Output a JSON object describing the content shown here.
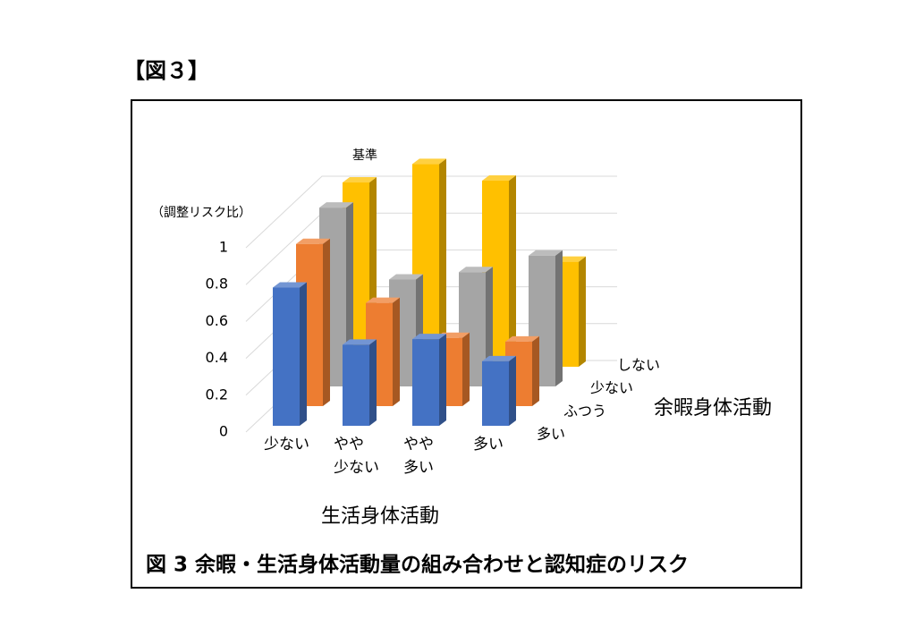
{
  "header": {
    "title": "【図３】"
  },
  "chart_data": {
    "type": "bar3d",
    "y_label": "（調整リスク比）",
    "x_label": "生活身体活動",
    "depth_label": "余暇身体活動",
    "annotation": "基準",
    "caption": "図 3  余暇・生活身体活動量の組み合わせと認知症のリスク",
    "categories": [
      "少ない",
      "やや\n少ない",
      "やや\n多い",
      "多い"
    ],
    "series": [
      {
        "name": "多い",
        "color": "#4472c4",
        "values": [
          0.75,
          0.44,
          0.47,
          0.35
        ]
      },
      {
        "name": "ふつう",
        "color": "#ed7d31",
        "values": [
          0.88,
          0.56,
          0.37,
          0.35
        ]
      },
      {
        "name": "少ない",
        "color": "#a5a5a5",
        "values": [
          0.97,
          0.58,
          0.62,
          0.71
        ]
      },
      {
        "name": "しない",
        "color": "#ffc000",
        "values": [
          1,
          1.1,
          1.01,
          0.57
        ]
      }
    ],
    "ylim": [
      0,
      1.2
    ],
    "yticks": [
      0,
      0.2,
      0.4,
      0.6,
      0.8,
      1
    ],
    "grid": true
  }
}
